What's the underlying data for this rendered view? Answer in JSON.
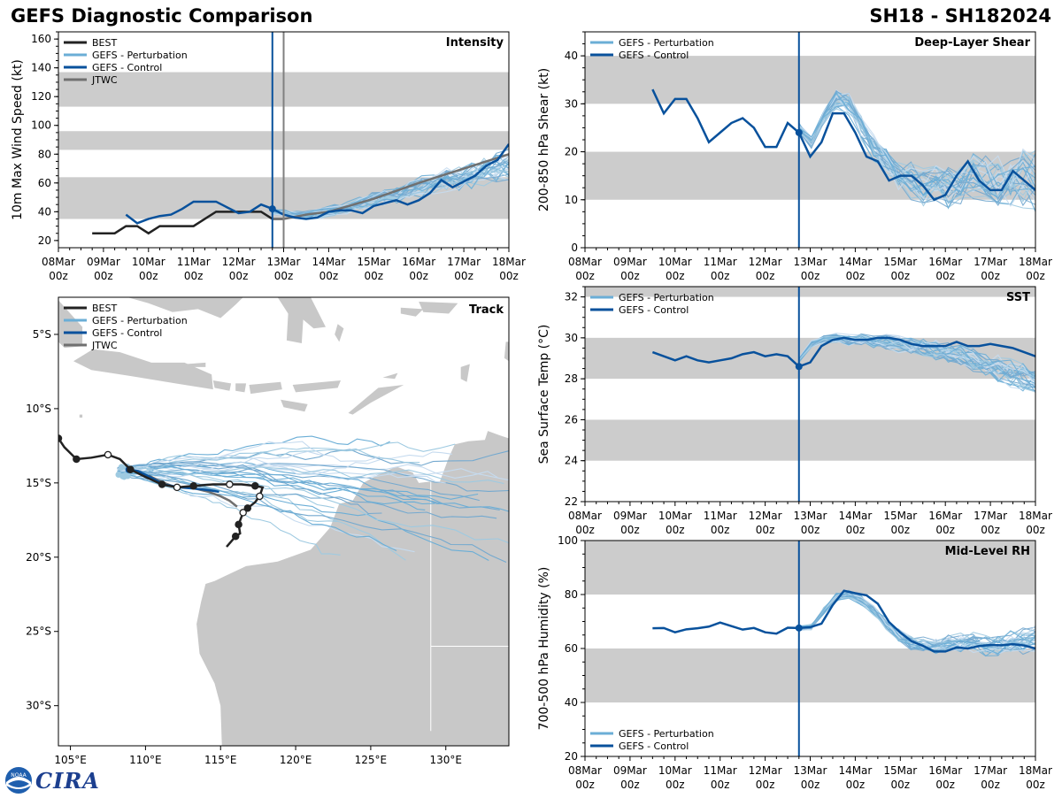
{
  "header": {
    "title": "GEFS Diagnostic Comparison",
    "storm_id": "SH18 - SH182024"
  },
  "logo": {
    "noaa": "NOAA",
    "cira": "CIRA"
  },
  "colors": {
    "best": "#222222",
    "perturbation": "#6baed6",
    "control": "#08519c",
    "jtwc": "#707070",
    "band": "#cccccc",
    "land": "#c8c8c8",
    "vline_control": "#08519c",
    "vline_jtwc": "#808080"
  },
  "time_axis": {
    "ticks": [
      {
        "day": 0,
        "l1": "08Mar",
        "l2": "00z"
      },
      {
        "day": 1,
        "l1": "09Mar",
        "l2": "00z"
      },
      {
        "day": 2,
        "l1": "10Mar",
        "l2": "00z"
      },
      {
        "day": 3,
        "l1": "11Mar",
        "l2": "00z"
      },
      {
        "day": 4,
        "l1": "12Mar",
        "l2": "00z"
      },
      {
        "day": 5,
        "l1": "13Mar",
        "l2": "00z"
      },
      {
        "day": 6,
        "l1": "14Mar",
        "l2": "00z"
      },
      {
        "day": 7,
        "l1": "15Mar",
        "l2": "00z"
      },
      {
        "day": 8,
        "l1": "16Mar",
        "l2": "00z"
      },
      {
        "day": 9,
        "l1": "17Mar",
        "l2": "00z"
      },
      {
        "day": 10,
        "l1": "18Mar",
        "l2": "00z"
      }
    ],
    "init_day": 4.75,
    "jtwc_day": 5.0
  },
  "chart_data": [
    {
      "id": "intensity",
      "type": "line",
      "title": "Intensity",
      "ylabel": "10m Max Wind Speed (kt)",
      "xlim": [
        0,
        10
      ],
      "ylim": [
        15,
        165
      ],
      "yticks": [
        20,
        40,
        60,
        80,
        100,
        120,
        140,
        160
      ],
      "bands": [
        [
          35,
          64
        ],
        [
          83,
          96
        ],
        [
          113,
          137
        ]
      ],
      "legend": [
        "BEST",
        "GEFS - Perturbation",
        "GEFS - Control",
        "JTWC"
      ],
      "legend_pos": "top-left",
      "best": {
        "name": "BEST",
        "x": [
          0.75,
          1.0,
          1.25,
          1.5,
          1.75,
          2.0,
          2.25,
          2.5,
          2.75,
          3.0,
          3.25,
          3.5,
          3.75,
          4.0,
          4.25,
          4.5,
          4.75,
          5.0
        ],
        "y": [
          25,
          25,
          25,
          30,
          30,
          25,
          30,
          30,
          30,
          30,
          35,
          40,
          40,
          40,
          40,
          40,
          35,
          35
        ]
      },
      "control": {
        "name": "GEFS - Control",
        "x": [
          1.5,
          1.75,
          2.0,
          2.25,
          2.5,
          2.75,
          3.0,
          3.25,
          3.5,
          3.75,
          4.0,
          4.25,
          4.5,
          4.75,
          5.0,
          5.25,
          5.5,
          5.75,
          6.0,
          6.25,
          6.5,
          6.75,
          7.0,
          7.25,
          7.5,
          7.75,
          8.0,
          8.25,
          8.5,
          8.75,
          9.0,
          9.25,
          9.5,
          9.75,
          10.0
        ],
        "y": [
          38,
          32,
          35,
          37,
          38,
          42,
          47,
          47,
          47,
          43,
          39,
          40,
          45,
          42,
          38,
          36,
          35,
          36,
          40,
          41,
          41,
          39,
          44,
          46,
          48,
          45,
          48,
          53,
          62,
          57,
          61,
          65,
          72,
          76,
          87
        ]
      },
      "jtwc": {
        "name": "JTWC",
        "x": [
          4.75,
          5.0,
          5.5,
          6.0,
          7.0,
          8.0,
          9.0,
          10.0
        ],
        "y": [
          35,
          35,
          38,
          40,
          49,
          60,
          70,
          80
        ]
      },
      "perturbation": {
        "name": "GEFS - Perturbation",
        "base": [
          40,
          39,
          38,
          38,
          39,
          41,
          43,
          46,
          48,
          50,
          52,
          55,
          58,
          60,
          62,
          64,
          66,
          68,
          70,
          72
        ],
        "amp": 16,
        "vmin": 25,
        "vmax": 95
      }
    },
    {
      "id": "shear",
      "type": "line",
      "title": "Deep-Layer Shear",
      "ylabel": "200-850 hPa Shear (kt)",
      "xlim": [
        0,
        10
      ],
      "ylim": [
        0,
        45
      ],
      "yticks": [
        0,
        10,
        20,
        30,
        40
      ],
      "bands": [
        [
          10,
          20
        ],
        [
          30,
          40
        ]
      ],
      "legend": [
        "GEFS - Perturbation",
        "GEFS - Control"
      ],
      "legend_pos": "top-left",
      "control": {
        "name": "GEFS - Control",
        "x": [
          1.5,
          1.75,
          2.0,
          2.25,
          2.5,
          2.75,
          3.0,
          3.25,
          3.5,
          3.75,
          4.0,
          4.25,
          4.5,
          4.75,
          5.0,
          5.25,
          5.5,
          5.75,
          6.0,
          6.25,
          6.5,
          6.75,
          7.0,
          7.25,
          7.5,
          7.75,
          8.0,
          8.25,
          8.5,
          8.75,
          9.0,
          9.25,
          9.5,
          9.75,
          10.0
        ],
        "y": [
          33,
          28,
          31,
          31,
          27,
          22,
          24,
          26,
          27,
          25,
          21,
          21,
          26,
          24,
          19,
          22,
          28,
          28,
          24,
          19,
          18,
          14,
          15,
          15,
          13,
          10,
          11,
          15,
          18,
          14,
          12,
          12,
          16,
          14,
          12
        ]
      },
      "perturbation": {
        "name": "GEFS - Perturbation",
        "base": [
          25,
          22,
          27,
          31,
          30,
          25,
          21,
          18,
          15,
          14,
          13,
          14,
          13,
          14,
          15,
          14,
          13,
          14,
          15,
          14
        ],
        "amp": 10,
        "vmin": 1,
        "vmax": 39
      }
    },
    {
      "id": "sst",
      "type": "line",
      "title": "SST",
      "ylabel": "Sea Surface Temp (°C)",
      "xlim": [
        0,
        10
      ],
      "ylim": [
        22,
        32.5
      ],
      "yticks": [
        22,
        24,
        26,
        28,
        30,
        32
      ],
      "bands": [
        [
          24,
          26
        ],
        [
          28,
          30
        ],
        [
          32,
          33
        ]
      ],
      "legend": [
        "GEFS - Perturbation",
        "GEFS - Control"
      ],
      "legend_pos": "top-left",
      "control": {
        "name": "GEFS - Control",
        "x": [
          1.5,
          1.75,
          2.0,
          2.25,
          2.5,
          2.75,
          3.0,
          3.25,
          3.5,
          3.75,
          4.0,
          4.25,
          4.5,
          4.75,
          5.0,
          5.25,
          5.5,
          5.75,
          6.0,
          6.25,
          6.5,
          6.75,
          7.0,
          7.25,
          7.5,
          7.75,
          8.0,
          8.25,
          8.5,
          8.75,
          9.0,
          9.25,
          9.5,
          9.75,
          10.0
        ],
        "y": [
          29.3,
          29.1,
          28.9,
          29.1,
          28.9,
          28.8,
          28.9,
          29.0,
          29.2,
          29.3,
          29.1,
          29.2,
          29.1,
          28.6,
          28.8,
          29.6,
          29.9,
          30.0,
          29.9,
          29.9,
          30.0,
          30.0,
          29.9,
          29.7,
          29.6,
          29.6,
          29.6,
          29.8,
          29.6,
          29.6,
          29.7,
          29.6,
          29.5,
          29.3,
          29.1
        ]
      },
      "perturbation": {
        "name": "GEFS - Perturbation",
        "base": [
          28.9,
          29.7,
          29.9,
          30.0,
          29.9,
          29.9,
          29.8,
          29.8,
          29.7,
          29.6,
          29.5,
          29.4,
          29.3,
          29.1,
          28.9,
          28.7,
          28.5,
          28.3,
          28.1,
          27.9
        ],
        "amp": 1.2,
        "vmin": 25.8,
        "vmax": 30.3
      }
    },
    {
      "id": "rh",
      "type": "line",
      "title": "Mid-Level RH",
      "ylabel": "700-500 hPa Humidity (%)",
      "xlim": [
        0,
        10
      ],
      "ylim": [
        20,
        100
      ],
      "yticks": [
        20,
        40,
        60,
        80,
        100
      ],
      "bands": [
        [
          40,
          60
        ],
        [
          80,
          100
        ]
      ],
      "legend": [
        "GEFS - Perturbation",
        "GEFS - Control"
      ],
      "legend_pos": "bottom-left",
      "control": {
        "name": "GEFS - Control",
        "x": [
          1.5,
          1.75,
          2.0,
          2.25,
          2.5,
          2.75,
          3.0,
          3.25,
          3.5,
          3.75,
          4.0,
          4.25,
          4.5,
          4.75,
          5.0,
          5.25,
          5.5,
          5.75,
          6.0,
          6.25,
          6.5,
          6.75,
          7.0,
          7.25,
          7.5,
          7.75,
          8.0,
          8.25,
          8.5,
          8.75,
          9.0,
          9.25,
          9.5,
          9.75,
          10.0
        ],
        "y": [
          67.5,
          67.6,
          66.0,
          67.1,
          67.5,
          68.1,
          69.6,
          68.3,
          67.0,
          67.6,
          66.0,
          65.5,
          67.7,
          67.6,
          67.9,
          69.2,
          76.1,
          81.4,
          80.5,
          79.7,
          76.6,
          69.8,
          65.9,
          62.7,
          61.0,
          58.9,
          58.9,
          60.4,
          60.0,
          60.9,
          61.3,
          61.2,
          61.6,
          61.1,
          60.0
        ]
      },
      "perturbation": {
        "name": "GEFS - Perturbation",
        "base": [
          67.5,
          68.0,
          74.0,
          79.0,
          80.0,
          78.0,
          74.0,
          69.0,
          65.0,
          62.0,
          61.0,
          61.0,
          62.0,
          62.0,
          62.0,
          61.0,
          61.0,
          62.0,
          63.0,
          63.0
        ],
        "amp": 8,
        "vmin": 44,
        "vmax": 85
      }
    },
    {
      "id": "track",
      "type": "scatter",
      "title": "Track",
      "xlim": [
        104.2,
        134.2
      ],
      "ylim": [
        -32.7,
        -2.5
      ],
      "xticks": [
        {
          "v": 105,
          "label": "105°E"
        },
        {
          "v": 110,
          "label": "110°E"
        },
        {
          "v": 115,
          "label": "115°E"
        },
        {
          "v": 120,
          "label": "120°E"
        },
        {
          "v": 125,
          "label": "125°E"
        },
        {
          "v": 130,
          "label": "130°E"
        }
      ],
      "yticks": [
        {
          "v": -5,
          "label": "5°S"
        },
        {
          "v": -10,
          "label": "10°S"
        },
        {
          "v": -15,
          "label": "15°S"
        },
        {
          "v": -20,
          "label": "20°S"
        },
        {
          "v": -25,
          "label": "25°S"
        },
        {
          "v": -30,
          "label": "30°S"
        }
      ],
      "legend": [
        "BEST",
        "GEFS - Perturbation",
        "GEFS - Control",
        "JTWC"
      ],
      "legend_pos": "top-left",
      "best": {
        "name": "BEST",
        "lon": [
          104.2,
          104.6,
          105.4,
          106.4,
          107.5,
          108.3,
          109.0,
          110.0,
          111.1,
          112.1,
          113.2,
          114.5,
          115.6,
          116.4,
          117.3,
          117.8,
          117.6,
          117.3,
          116.8,
          116.5,
          116.2,
          116.3,
          116.0,
          115.4
        ],
        "lat": [
          -12.0,
          -12.6,
          -13.4,
          -13.3,
          -13.1,
          -13.4,
          -14.1,
          -14.6,
          -15.1,
          -15.3,
          -15.2,
          -15.1,
          -15.1,
          -15.1,
          -15.2,
          -15.3,
          -15.9,
          -16.3,
          -16.7,
          -17.0,
          -17.8,
          -18.4,
          -18.6,
          -19.3
        ],
        "open_points": [
          4,
          9,
          12,
          16,
          19
        ]
      },
      "control": {
        "name": "GEFS - Control",
        "lon": [
          108.9,
          109.5,
          110.3,
          111.2,
          112.3,
          113.4,
          114.3,
          114.9
        ],
        "lat": [
          -14.1,
          -14.2,
          -14.6,
          -15.1,
          -15.3,
          -15.4,
          -15.5,
          -15.6
        ]
      },
      "jtwc": {
        "name": "JTWC",
        "lon": [
          110.2,
          111.0,
          112.0,
          113.0,
          114.2,
          115.0,
          115.6,
          116.1
        ],
        "lat": [
          -14.5,
          -14.9,
          -15.3,
          -15.3,
          -15.6,
          -15.9,
          -16.2,
          -16.6
        ]
      },
      "perturbation": {
        "name": "GEFS - Perturbation",
        "start": [
          108.4,
          -14.2
        ]
      }
    }
  ]
}
